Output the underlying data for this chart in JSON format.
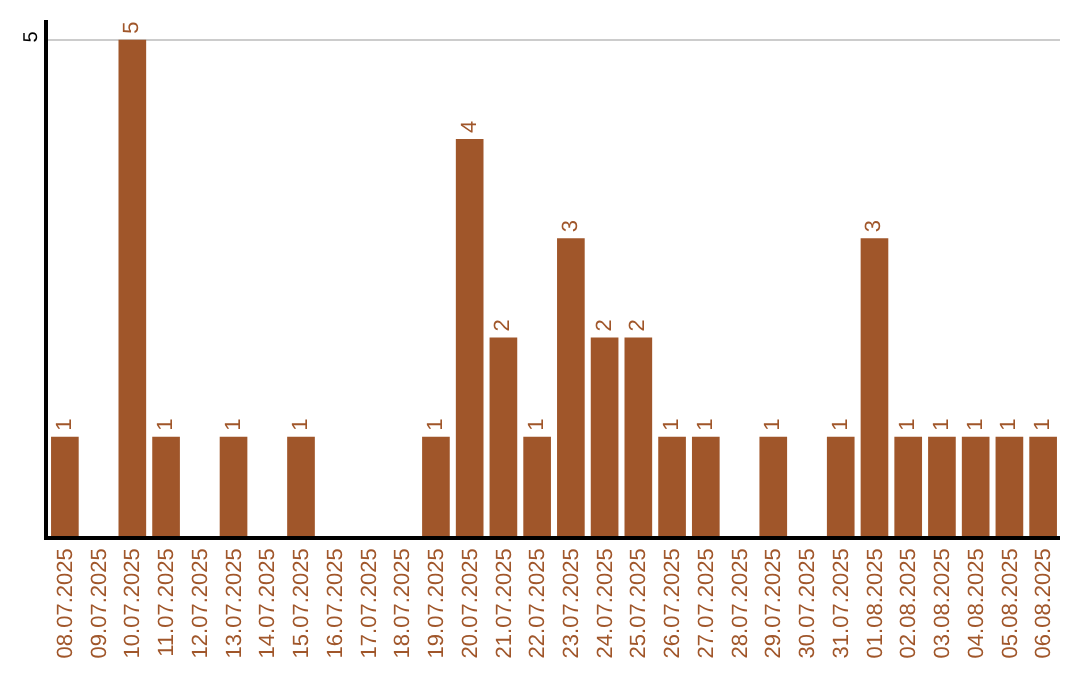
{
  "chart_data": {
    "type": "bar",
    "categories": [
      "08.07.2025",
      "09.07.2025",
      "10.07.2025",
      "11.07.2025",
      "12.07.2025",
      "13.07.2025",
      "14.07.2025",
      "15.07.2025",
      "16.07.2025",
      "17.07.2025",
      "18.07.2025",
      "19.07.2025",
      "20.07.2025",
      "21.07.2025",
      "22.07.2025",
      "23.07.2025",
      "24.07.2025",
      "25.07.2025",
      "26.07.2025",
      "27.07.2025",
      "28.07.2025",
      "29.07.2025",
      "30.07.2025",
      "31.07.2025",
      "01.08.2025",
      "02.08.2025",
      "03.08.2025",
      "04.08.2025",
      "05.08.2025",
      "06.08.2025"
    ],
    "values": [
      1,
      null,
      5,
      1,
      null,
      1,
      null,
      1,
      null,
      null,
      null,
      1,
      4,
      2,
      1,
      3,
      2,
      2,
      1,
      1,
      null,
      1,
      null,
      1,
      3,
      1,
      1,
      1,
      1,
      1
    ],
    "color": "#a0562a",
    "ylim": [
      0,
      5.2
    ],
    "yticks": [
      5
    ],
    "grid": "y",
    "data_labels": true
  }
}
